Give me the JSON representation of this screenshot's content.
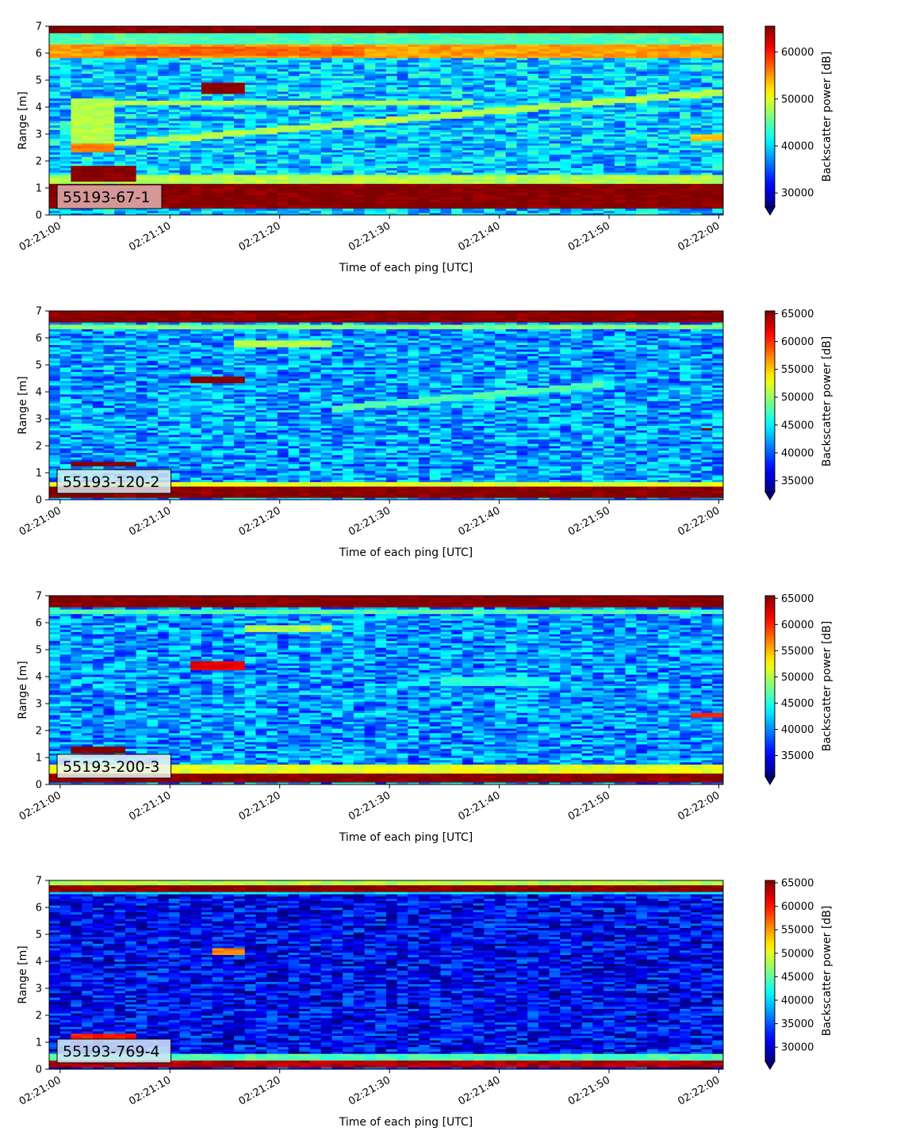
{
  "chart_data": [
    {
      "type": "heatmap",
      "label": "55193-67-1",
      "label_box_color": "#e3b1b1",
      "xlabel": "Time of each ping [UTC]",
      "ylabel": "Range [m]",
      "colorbar_label": "Backscatter power [dB]",
      "colormap": "jet",
      "colorbar_extend": "min",
      "xlim": [
        "02:21:00",
        "02:22:00"
      ],
      "x_ticks": [
        "02:21:00",
        "02:21:10",
        "02:21:20",
        "02:21:30",
        "02:21:40",
        "02:21:50",
        "02:22:00"
      ],
      "ylim": [
        0,
        7
      ],
      "y_ticks": [
        "0",
        "1",
        "2",
        "3",
        "4",
        "5",
        "6",
        "7"
      ],
      "clim": [
        27000,
        65500
      ],
      "colorbar_ticks": [
        "30000",
        "40000",
        "50000",
        "60000"
      ],
      "background_level": 0.32,
      "bands": [
        {
          "y": [
            0.25,
            1.15
          ],
          "level": 1.0
        },
        {
          "y": [
            6.75,
            7.0
          ],
          "level": 1.0
        },
        {
          "y": [
            5.85,
            6.35
          ],
          "level": 0.72
        },
        {
          "y": [
            1.2,
            1.5
          ],
          "level": 0.55
        },
        {
          "y": [
            6.35,
            6.75
          ],
          "level": 0.45
        }
      ],
      "features": [
        {
          "t": [
            0.5,
            6.5
          ],
          "y": [
            1.25,
            1.8
          ],
          "level": 1.0
        },
        {
          "t": [
            1.0,
            4.5
          ],
          "y": [
            2.3,
            2.7
          ],
          "level": 0.75
        },
        {
          "t": [
            1.0,
            4.5
          ],
          "y": [
            2.7,
            4.3
          ],
          "level": 0.55
        },
        {
          "t": [
            12.5,
            16.5
          ],
          "y": [
            4.5,
            4.95
          ],
          "level": 1.0
        },
        {
          "t": [
            3.5,
            28.0
          ],
          "y": [
            5.9,
            6.25
          ],
          "level": 0.78
        },
        {
          "t": [
            3.5,
            61.0
          ],
          "y": [
            2.6,
            4.6
          ],
          "level": 0.55
        },
        {
          "t": [
            3.5,
            38.0
          ],
          "y": [
            4.1,
            4.25
          ],
          "level": 0.55
        },
        {
          "t": [
            57.0,
            61.0
          ],
          "y": [
            2.75,
            3.0
          ],
          "level": 0.68
        }
      ]
    },
    {
      "type": "heatmap",
      "label": "55193-120-2",
      "label_box_color": "#d9e9f0",
      "xlabel": "Time of each ping [UTC]",
      "ylabel": "Range [m]",
      "colorbar_label": "Backscatter power [dB]",
      "colormap": "jet",
      "colorbar_extend": "min",
      "xlim": [
        "02:21:00",
        "02:22:00"
      ],
      "x_ticks": [
        "02:21:00",
        "02:21:10",
        "02:21:20",
        "02:21:30",
        "02:21:40",
        "02:21:50",
        "02:22:00"
      ],
      "ylim": [
        0,
        7
      ],
      "y_ticks": [
        "0",
        "1",
        "2",
        "3",
        "4",
        "5",
        "6",
        "7"
      ],
      "clim": [
        33000,
        65500
      ],
      "colorbar_ticks": [
        "35000",
        "40000",
        "45000",
        "50000",
        "55000",
        "60000",
        "65000"
      ],
      "background_level": 0.28,
      "bands": [
        {
          "y": [
            0.1,
            0.5
          ],
          "level": 1.0
        },
        {
          "y": [
            6.6,
            7.0
          ],
          "level": 1.0
        },
        {
          "y": [
            0.5,
            0.65
          ],
          "level": 0.6
        },
        {
          "y": [
            6.3,
            6.5
          ],
          "level": 0.5
        }
      ],
      "features": [
        {
          "t": [
            1.0,
            6.5
          ],
          "y": [
            1.25,
            1.45
          ],
          "level": 1.0
        },
        {
          "t": [
            11.5,
            16.5
          ],
          "y": [
            4.3,
            4.6
          ],
          "level": 1.0
        },
        {
          "t": [
            16.0,
            24.5
          ],
          "y": [
            5.7,
            5.9
          ],
          "level": 0.55
        },
        {
          "t": [
            25.0,
            50.0
          ],
          "y": [
            3.4,
            4.3
          ],
          "level": 0.45
        },
        {
          "t": [
            58.0,
            59.0
          ],
          "y": [
            2.55,
            2.7
          ],
          "level": 1.0
        }
      ]
    },
    {
      "type": "heatmap",
      "label": "55193-200-3",
      "label_box_color": "#ecf4f4",
      "xlabel": "Time of each ping [UTC]",
      "ylabel": "Range [m]",
      "colorbar_label": "Backscatter power [dB]",
      "colormap": "jet",
      "colorbar_extend": "min",
      "xlim": [
        "02:21:00",
        "02:22:00"
      ],
      "x_ticks": [
        "02:21:00",
        "02:21:10",
        "02:21:20",
        "02:21:30",
        "02:21:40",
        "02:21:50",
        "02:22:00"
      ],
      "ylim": [
        0,
        7
      ],
      "y_ticks": [
        "0",
        "1",
        "2",
        "3",
        "4",
        "5",
        "6",
        "7"
      ],
      "clim": [
        31000,
        65500
      ],
      "colorbar_ticks": [
        "35000",
        "40000",
        "45000",
        "50000",
        "55000",
        "60000",
        "65000"
      ],
      "background_level": 0.27,
      "bands": [
        {
          "y": [
            0.1,
            0.4
          ],
          "level": 1.0
        },
        {
          "y": [
            0.4,
            0.75
          ],
          "level": 0.6
        },
        {
          "y": [
            6.6,
            7.0
          ],
          "level": 1.0
        },
        {
          "y": [
            6.3,
            6.5
          ],
          "level": 0.45
        }
      ],
      "features": [
        {
          "t": [
            1.0,
            5.5
          ],
          "y": [
            1.2,
            1.4
          ],
          "level": 1.0
        },
        {
          "t": [
            11.5,
            16.5
          ],
          "y": [
            4.25,
            4.6
          ],
          "level": 0.9
        },
        {
          "t": [
            16.5,
            24.5
          ],
          "y": [
            5.7,
            5.9
          ],
          "level": 0.55
        },
        {
          "t": [
            35.0,
            45.0
          ],
          "y": [
            3.7,
            4.0
          ],
          "level": 0.4
        },
        {
          "t": [
            57.0,
            60.0
          ],
          "y": [
            2.5,
            2.7
          ],
          "level": 0.85
        }
      ]
    },
    {
      "type": "heatmap",
      "label": "55193-769-4",
      "label_box_color": "#d6e6f4",
      "xlabel": "Time of each ping [UTC]",
      "ylabel": "Range [m]",
      "colorbar_label": "Backscatter power [dB]",
      "colormap": "jet",
      "colorbar_extend": "min",
      "xlim": [
        "02:21:00",
        "02:22:00"
      ],
      "x_ticks": [
        "02:21:00",
        "02:21:10",
        "02:21:20",
        "02:21:30",
        "02:21:40",
        "02:21:50",
        "02:22:00"
      ],
      "ylim": [
        0,
        7
      ],
      "y_ticks": [
        "0",
        "1",
        "2",
        "3",
        "4",
        "5",
        "6",
        "7"
      ],
      "clim": [
        27000,
        65500
      ],
      "colorbar_ticks": [
        "30000",
        "35000",
        "40000",
        "45000",
        "50000",
        "55000",
        "60000",
        "65000"
      ],
      "background_level": 0.12,
      "bands": [
        {
          "y": [
            0.1,
            0.3
          ],
          "level": 0.95
        },
        {
          "y": [
            0.3,
            0.6
          ],
          "level": 0.45
        },
        {
          "y": [
            6.6,
            6.8
          ],
          "level": 1.0
        },
        {
          "y": [
            6.8,
            7.0
          ],
          "level": 0.55
        },
        {
          "y": [
            6.5,
            6.6
          ],
          "level": 0.35
        }
      ],
      "features": [
        {
          "t": [
            1.0,
            6.5
          ],
          "y": [
            1.1,
            1.3
          ],
          "level": 0.85
        },
        {
          "t": [
            13.5,
            16.5
          ],
          "y": [
            4.25,
            4.5
          ],
          "level": 0.75
        }
      ]
    }
  ]
}
